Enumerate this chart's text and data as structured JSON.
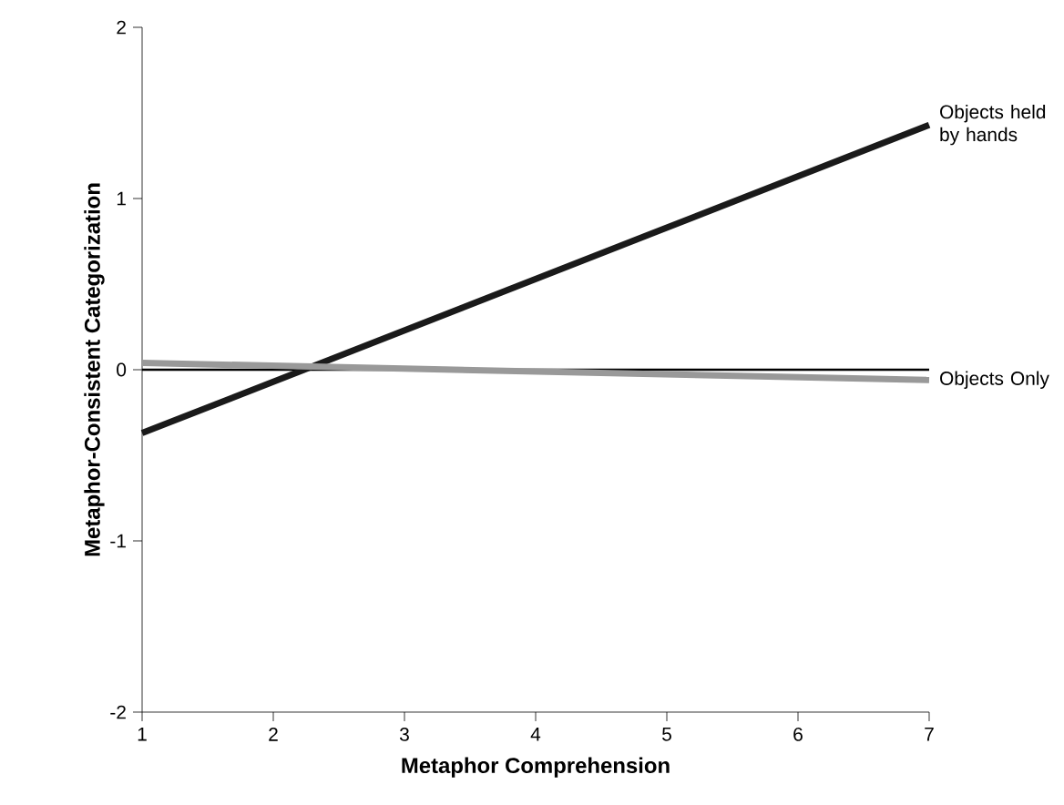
{
  "chart_data": {
    "type": "line",
    "xlabel": "Metaphor Comprehension",
    "ylabel": "Metaphor-Consistent Categorization",
    "x": [
      1,
      7
    ],
    "series": [
      {
        "name": "Objects held by hands",
        "color": "#1a1a1a",
        "values": [
          -0.37,
          1.43
        ]
      },
      {
        "name": "Objects Only",
        "color": "#999999",
        "values": [
          0.04,
          -0.06
        ]
      }
    ],
    "xlim": [
      1,
      7
    ],
    "ylim": [
      -2,
      2
    ],
    "xticks": [
      1,
      2,
      3,
      4,
      5,
      6,
      7
    ],
    "yticks": [
      -2,
      -1,
      0,
      1,
      2
    ],
    "ref_lines": [
      {
        "axis": "y",
        "value": 0,
        "color": "#000000"
      }
    ],
    "grid": false,
    "marker": "none",
    "line_style": "solid"
  }
}
